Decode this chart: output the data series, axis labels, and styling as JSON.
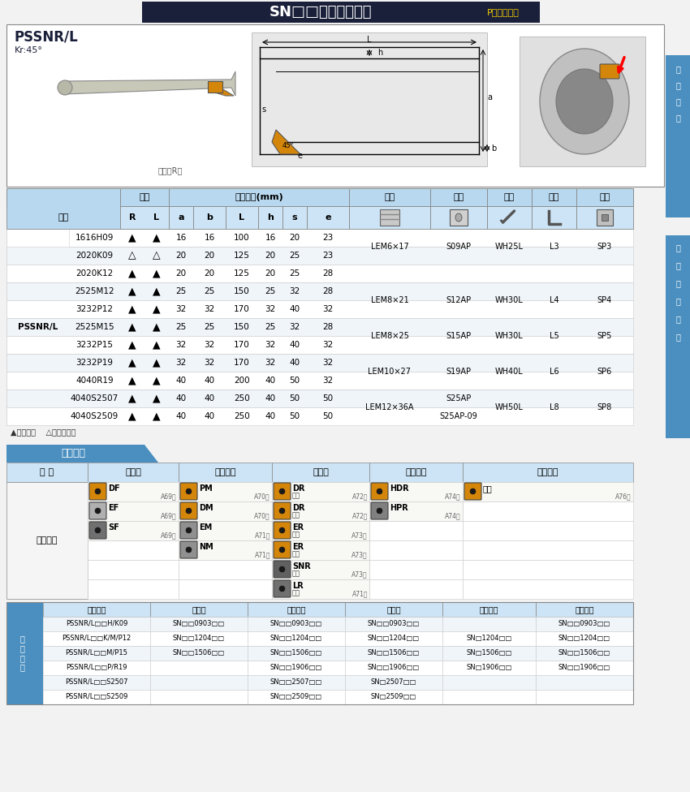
{
  "title_main": "SN□□刀片对应刀杆",
  "title_sub": "P类夹紧方式",
  "tool_name": "PSSNR/L",
  "kr": "Kr:45°",
  "fig_note": "图示为R型",
  "rows": [
    [
      "PSSNR/L",
      "1616H09",
      "▲",
      "▲",
      "16",
      "16",
      "100",
      "16",
      "20",
      "23",
      "LEM6×17",
      "S09AP",
      "WH25L",
      "L3",
      "SP3"
    ],
    [
      "",
      "2020K09",
      "△",
      "△",
      "20",
      "20",
      "125",
      "20",
      "25",
      "23",
      "",
      "",
      "",
      "",
      ""
    ],
    [
      "",
      "2020K12",
      "▲",
      "▲",
      "20",
      "20",
      "125",
      "20",
      "25",
      "28",
      "",
      "",
      "",
      "",
      ""
    ],
    [
      "",
      "2525M12",
      "▲",
      "▲",
      "25",
      "25",
      "150",
      "25",
      "32",
      "28",
      "LEM8×21",
      "S12AP",
      "WH30L",
      "L4",
      "SP4"
    ],
    [
      "",
      "3232P12",
      "▲",
      "▲",
      "32",
      "32",
      "170",
      "32",
      "40",
      "32",
      "",
      "",
      "",
      "",
      ""
    ],
    [
      "",
      "2525M15",
      "▲",
      "▲",
      "25",
      "25",
      "150",
      "25",
      "32",
      "28",
      "LEM8×25",
      "S15AP",
      "WH30L",
      "L5",
      "SP5"
    ],
    [
      "",
      "3232P15",
      "▲",
      "▲",
      "32",
      "32",
      "170",
      "32",
      "40",
      "32",
      "",
      "",
      "",
      "",
      ""
    ],
    [
      "",
      "3232P19",
      "▲",
      "▲",
      "32",
      "32",
      "170",
      "32",
      "40",
      "32",
      "LEM10×27",
      "S19AP",
      "WH40L",
      "L6",
      "SP6"
    ],
    [
      "",
      "4040R19",
      "▲",
      "▲",
      "40",
      "40",
      "200",
      "40",
      "50",
      "32",
      "",
      "",
      "",
      "",
      ""
    ],
    [
      "",
      "4040S2507",
      "▲",
      "▲",
      "40",
      "40",
      "250",
      "40",
      "50",
      "50",
      "LEM12×36A",
      "S25AP",
      "WH50L",
      "L8",
      "SP8"
    ],
    [
      "",
      "4040S2509",
      "▲",
      "▲",
      "40",
      "40",
      "250",
      "40",
      "50",
      "50",
      "",
      "S25AP-09",
      "",
      "",
      ""
    ]
  ],
  "insert_items": [
    [
      0,
      0,
      "DF",
      "",
      "#d4860a",
      "A69页"
    ],
    [
      0,
      1,
      "EF",
      "",
      "#b0b0b0",
      "A69页"
    ],
    [
      0,
      2,
      "SF",
      "",
      "#707070",
      "A69页"
    ],
    [
      1,
      0,
      "PM",
      "",
      "#d4860a",
      "A70页"
    ],
    [
      1,
      1,
      "DM",
      "",
      "#d4860a",
      "A70页"
    ],
    [
      1,
      2,
      "EM",
      "",
      "#909090",
      "A71页"
    ],
    [
      1,
      3,
      "NM",
      "",
      "#909090",
      "A71页"
    ],
    [
      2,
      0,
      "DR",
      "双面",
      "#d4860a",
      "A72页"
    ],
    [
      2,
      1,
      "DR",
      "单面",
      "#d4860a",
      "A72页"
    ],
    [
      2,
      2,
      "ER",
      "双面",
      "#d4860a",
      "A73页"
    ],
    [
      2,
      3,
      "ER",
      "单面",
      "#d4860a",
      "A73页"
    ],
    [
      2,
      4,
      "SNR",
      "双面",
      "#606060",
      "A73页"
    ],
    [
      2,
      5,
      "LR",
      "单面",
      "#707070",
      "A71页"
    ],
    [
      3,
      0,
      "HDR",
      "",
      "#d4860a",
      "A74页"
    ],
    [
      3,
      1,
      "HPR",
      "",
      "#808080",
      "A74页"
    ],
    [
      4,
      0,
      "无槽",
      "",
      "#d4860a",
      "A76页"
    ]
  ],
  "tool_rows": [
    [
      "PSSNR/L□□H/K09",
      "SN□□0903□□",
      "SN□□0903□□",
      "SN□□0903□□",
      "",
      "SN□□0903□□"
    ],
    [
      "PSSNR/L□□K/M/P12",
      "SN□□1204□□",
      "SN□□1204□□",
      "SN□□1204□□",
      "SN□1204□□",
      "SN□□1204□□"
    ],
    [
      "PSSNR/L□□M/P15",
      "SN□□1506□□",
      "SN□□1506□□",
      "SN□□1506□□",
      "SN□1506□□",
      "SN□□1506□□"
    ],
    [
      "PSSNR/L□□P/R19",
      "",
      "SN□□1906□□",
      "SN□□1906□□",
      "SN□1906□□",
      "SN□□1906□□"
    ],
    [
      "PSSNR/L□□S2507",
      "",
      "SN□□2507□□",
      "SN□2507□□",
      "",
      ""
    ],
    [
      "PSSNR/L□□S2509",
      "",
      "SN□□2509□□",
      "SN□2509□□",
      "",
      ""
    ]
  ]
}
